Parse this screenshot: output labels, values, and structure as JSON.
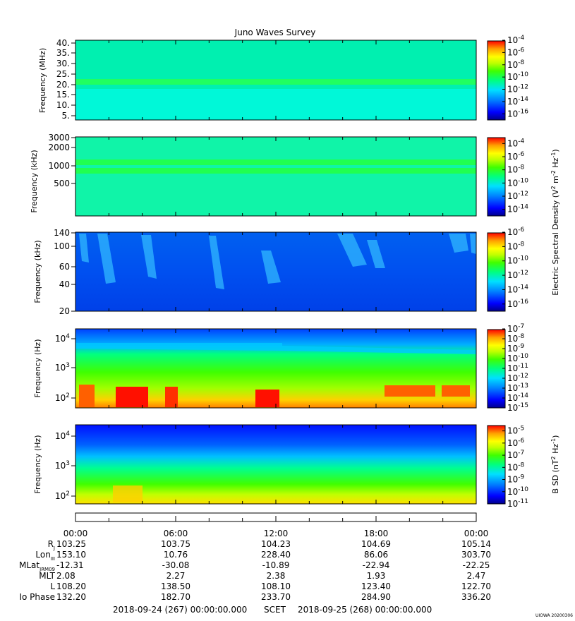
{
  "title": "Juno Waves Survey",
  "watermark": "UIOWA 20200306",
  "colors": {
    "spectrum": [
      "#00008c",
      "#0000ff",
      "#0080ff",
      "#00e0ff",
      "#00ff80",
      "#40ff00",
      "#c0ff00",
      "#ffff00",
      "#ffa000",
      "#ff0000"
    ]
  },
  "chart_data": [
    {
      "type": "heatmap",
      "panel": "hfr-high",
      "ylabel": "Frequency (MHz)",
      "yticks": [
        "40.",
        "35.",
        "30.",
        "25.",
        "20.",
        "15.",
        "10.",
        "5."
      ],
      "ylim": [
        3,
        41
      ],
      "colorbar": {
        "labels": [
          "10^-4",
          "10^-6",
          "10^-8",
          "10^-10",
          "10^-12",
          "10^-14",
          "10^-16"
        ],
        "range_exp": [
          -17,
          -4
        ]
      }
    },
    {
      "type": "heatmap",
      "panel": "hfr-low",
      "ylabel": "Frequency (kHz)",
      "yticks": [
        "3000",
        "2000",
        "1000",
        "500"
      ],
      "scale": "log",
      "colorbar": {
        "labels": [
          "10^-4",
          "10^-6",
          "10^-8",
          "10^-10",
          "10^-12",
          "10^-14"
        ],
        "range_exp": [
          -15,
          -3
        ],
        "label": "Electric Spectral Density (V^2 m^-2 Hz^-1)"
      }
    },
    {
      "type": "heatmap",
      "panel": "lfr-high",
      "ylabel": "Frequency (kHz)",
      "yticks": [
        "140",
        "100",
        "60",
        "40",
        "20"
      ],
      "colorbar": {
        "labels": [
          "10^-6",
          "10^-8",
          "10^-10",
          "10^-12",
          "10^-14",
          "10^-16"
        ],
        "range_exp": [
          -17,
          -6
        ]
      }
    },
    {
      "type": "heatmap",
      "panel": "lfr-low",
      "ylabel": "Frequency (Hz)",
      "yticks": [
        "10^4",
        "10^3",
        "10^2"
      ],
      "scale": "log",
      "colorbar": {
        "labels": [
          "10^-7",
          "10^-8",
          "10^-9",
          "10^-10",
          "10^-11",
          "10^-12",
          "10^-13",
          "10^-14",
          "10^-15"
        ],
        "range_exp": [
          -15,
          -7
        ]
      }
    },
    {
      "type": "heatmap",
      "panel": "magnetic",
      "ylabel": "Frequency (Hz)",
      "yticks": [
        "10^4",
        "10^3",
        "10^2"
      ],
      "scale": "log",
      "colorbar": {
        "labels": [
          "10^-5",
          "10^-6",
          "10^-7",
          "10^-8",
          "10^-9",
          "10^-10",
          "10^-11"
        ],
        "range_exp": [
          -11,
          -4.5
        ],
        "label": "B SD (nT^2 Hz^-1)"
      }
    }
  ],
  "ephemeris": {
    "times": [
      "00:00",
      "06:00",
      "12:00",
      "18:00",
      "00:00"
    ],
    "rows": [
      {
        "label": "R",
        "sub": "J",
        "values": [
          "103.25",
          "103.75",
          "104.23",
          "104.69",
          "105.14"
        ]
      },
      {
        "label": "Lon",
        "sub": "III",
        "values": [
          "153.10",
          "10.76",
          "228.40",
          "86.06",
          "303.70"
        ]
      },
      {
        "label": "MLat",
        "sub": "JRM09",
        "values": [
          "-12.31",
          "-30.08",
          "-10.89",
          "-22.94",
          "-22.25"
        ]
      },
      {
        "label": "MLT",
        "sub": "",
        "values": [
          "2.08",
          "2.27",
          "2.38",
          "1.93",
          "2.47"
        ]
      },
      {
        "label": "L",
        "sub": "",
        "values": [
          "108.20",
          "138.50",
          "108.10",
          "123.40",
          "122.70"
        ]
      },
      {
        "label": "Io Phase",
        "sub": "",
        "values": [
          "132.20",
          "182.70",
          "233.70",
          "284.90",
          "336.20"
        ]
      }
    ]
  },
  "footer": {
    "start": "2018-09-24 (267) 00:00:00.000",
    "scet": "SCET",
    "end": "2018-09-25 (268) 00:00:00.000"
  }
}
